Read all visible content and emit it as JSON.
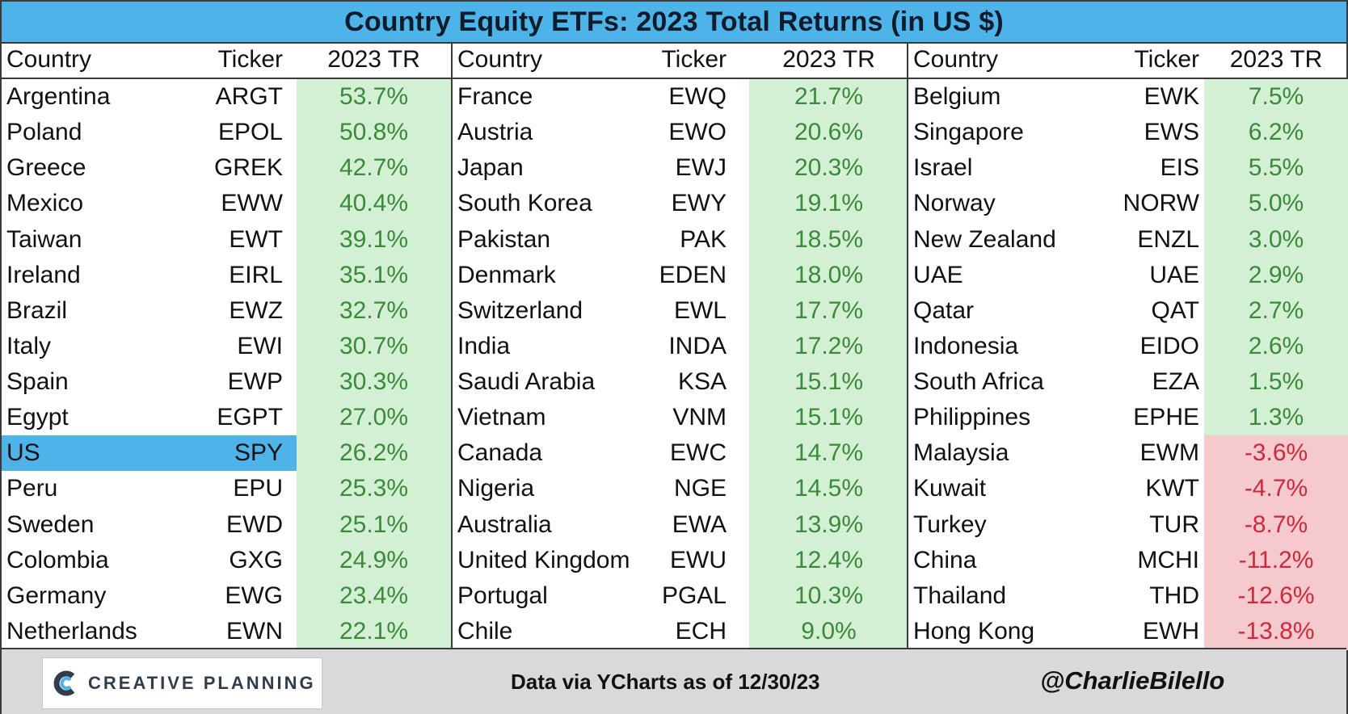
{
  "chart_data": {
    "type": "table",
    "title": "Country Equity ETFs: 2023 Total Returns (in US $)",
    "columns": [
      "Country",
      "Ticker",
      "2023 TR"
    ],
    "highlight_color": "#4db3e8",
    "positive_color": "#d4f0d4",
    "negative_color": "#f6c9cf",
    "positive_text_color": "#3a8a3a",
    "negative_text_color": "#cc2a3a",
    "panels": [
      {
        "rows": [
          {
            "country": "Argentina",
            "ticker": "ARGT",
            "value": 53.7,
            "label": "53.7%"
          },
          {
            "country": "Poland",
            "ticker": "EPOL",
            "value": 50.8,
            "label": "50.8%"
          },
          {
            "country": "Greece",
            "ticker": "GREK",
            "value": 42.7,
            "label": "42.7%"
          },
          {
            "country": "Mexico",
            "ticker": "EWW",
            "value": 40.4,
            "label": "40.4%"
          },
          {
            "country": "Taiwan",
            "ticker": "EWT",
            "value": 39.1,
            "label": "39.1%"
          },
          {
            "country": "Ireland",
            "ticker": "EIRL",
            "value": 35.1,
            "label": "35.1%"
          },
          {
            "country": "Brazil",
            "ticker": "EWZ",
            "value": 32.7,
            "label": "32.7%"
          },
          {
            "country": "Italy",
            "ticker": "EWI",
            "value": 30.7,
            "label": "30.7%"
          },
          {
            "country": "Spain",
            "ticker": "EWP",
            "value": 30.3,
            "label": "30.3%"
          },
          {
            "country": "Egypt",
            "ticker": "EGPT",
            "value": 27.0,
            "label": "27.0%"
          },
          {
            "country": "US",
            "ticker": "SPY",
            "value": 26.2,
            "label": "26.2%",
            "highlight": true
          },
          {
            "country": "Peru",
            "ticker": "EPU",
            "value": 25.3,
            "label": "25.3%"
          },
          {
            "country": "Sweden",
            "ticker": "EWD",
            "value": 25.1,
            "label": "25.1%"
          },
          {
            "country": "Colombia",
            "ticker": "GXG",
            "value": 24.9,
            "label": "24.9%"
          },
          {
            "country": "Germany",
            "ticker": "EWG",
            "value": 23.4,
            "label": "23.4%"
          },
          {
            "country": "Netherlands",
            "ticker": "EWN",
            "value": 22.1,
            "label": "22.1%"
          }
        ]
      },
      {
        "rows": [
          {
            "country": "France",
            "ticker": "EWQ",
            "value": 21.7,
            "label": "21.7%"
          },
          {
            "country": "Austria",
            "ticker": "EWO",
            "value": 20.6,
            "label": "20.6%"
          },
          {
            "country": "Japan",
            "ticker": "EWJ",
            "value": 20.3,
            "label": "20.3%"
          },
          {
            "country": "South Korea",
            "ticker": "EWY",
            "value": 19.1,
            "label": "19.1%"
          },
          {
            "country": "Pakistan",
            "ticker": "PAK",
            "value": 18.5,
            "label": "18.5%"
          },
          {
            "country": "Denmark",
            "ticker": "EDEN",
            "value": 18.0,
            "label": "18.0%"
          },
          {
            "country": "Switzerland",
            "ticker": "EWL",
            "value": 17.7,
            "label": "17.7%"
          },
          {
            "country": "India",
            "ticker": "INDA",
            "value": 17.2,
            "label": "17.2%"
          },
          {
            "country": "Saudi Arabia",
            "ticker": "KSA",
            "value": 15.1,
            "label": "15.1%"
          },
          {
            "country": "Vietnam",
            "ticker": "VNM",
            "value": 15.1,
            "label": "15.1%"
          },
          {
            "country": "Canada",
            "ticker": "EWC",
            "value": 14.7,
            "label": "14.7%"
          },
          {
            "country": "Nigeria",
            "ticker": "NGE",
            "value": 14.5,
            "label": "14.5%"
          },
          {
            "country": "Australia",
            "ticker": "EWA",
            "value": 13.9,
            "label": "13.9%"
          },
          {
            "country": "United Kingdom",
            "ticker": "EWU",
            "value": 12.4,
            "label": "12.4%"
          },
          {
            "country": "Portugal",
            "ticker": "PGAL",
            "value": 10.3,
            "label": "10.3%"
          },
          {
            "country": "Chile",
            "ticker": "ECH",
            "value": 9.0,
            "label": "9.0%"
          }
        ]
      },
      {
        "rows": [
          {
            "country": "Belgium",
            "ticker": "EWK",
            "value": 7.5,
            "label": "7.5%"
          },
          {
            "country": "Singapore",
            "ticker": "EWS",
            "value": 6.2,
            "label": "6.2%"
          },
          {
            "country": "Israel",
            "ticker": "EIS",
            "value": 5.5,
            "label": "5.5%"
          },
          {
            "country": "Norway",
            "ticker": "NORW",
            "value": 5.0,
            "label": "5.0%"
          },
          {
            "country": "New Zealand",
            "ticker": "ENZL",
            "value": 3.0,
            "label": "3.0%"
          },
          {
            "country": "UAE",
            "ticker": "UAE",
            "value": 2.9,
            "label": "2.9%"
          },
          {
            "country": "Qatar",
            "ticker": "QAT",
            "value": 2.7,
            "label": "2.7%"
          },
          {
            "country": "Indonesia",
            "ticker": "EIDO",
            "value": 2.6,
            "label": "2.6%"
          },
          {
            "country": "South Africa",
            "ticker": "EZA",
            "value": 1.5,
            "label": "1.5%"
          },
          {
            "country": "Philippines",
            "ticker": "EPHE",
            "value": 1.3,
            "label": "1.3%"
          },
          {
            "country": "Malaysia",
            "ticker": "EWM",
            "value": -3.6,
            "label": "-3.6%"
          },
          {
            "country": "Kuwait",
            "ticker": "KWT",
            "value": -4.7,
            "label": "-4.7%"
          },
          {
            "country": "Turkey",
            "ticker": "TUR",
            "value": -8.7,
            "label": "-8.7%"
          },
          {
            "country": "China",
            "ticker": "MCHI",
            "value": -11.2,
            "label": "-11.2%"
          },
          {
            "country": "Thailand",
            "ticker": "THD",
            "value": -12.6,
            "label": "-12.6%"
          },
          {
            "country": "Hong Kong",
            "ticker": "EWH",
            "value": -13.8,
            "label": "-13.8%"
          }
        ]
      }
    ]
  },
  "footer": {
    "logo_text": "CREATIVE PLANNING",
    "logo_icon": "creative-planning-c-logo",
    "source": "Data via YCharts as of 12/30/23",
    "handle": "@CharlieBilello"
  }
}
